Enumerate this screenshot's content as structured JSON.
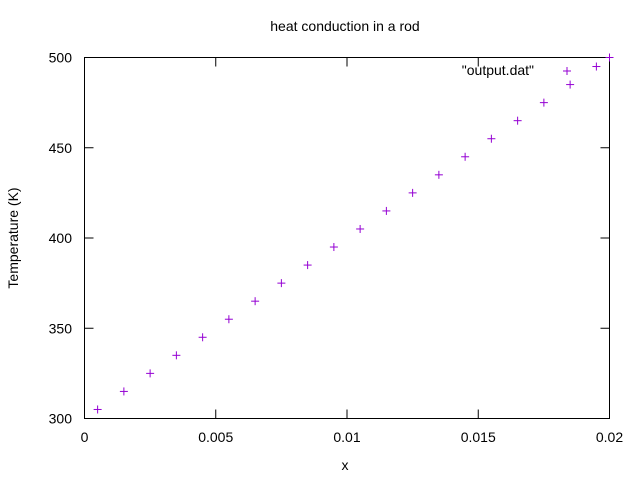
{
  "chart_data": {
    "type": "scatter",
    "title": "heat conduction in a rod",
    "xlabel": "x",
    "ylabel": "Temperature (K)",
    "xlim": [
      0,
      0.02
    ],
    "ylim": [
      300,
      500
    ],
    "xticks": [
      0,
      0.005,
      0.01,
      0.015,
      0.02
    ],
    "xtick_labels": [
      "0",
      "0.005",
      "0.01",
      "0.015",
      "0.02"
    ],
    "yticks": [
      300,
      350,
      400,
      450,
      500
    ],
    "ytick_labels": [
      "300",
      "350",
      "400",
      "450",
      "500"
    ],
    "grid": false,
    "marker": "+",
    "legend_position": "top-right",
    "series": [
      {
        "name": "\"output.dat\"",
        "color": "#9400d3",
        "points": [
          {
            "x": 0.0005,
            "y": 305
          },
          {
            "x": 0.0015,
            "y": 315
          },
          {
            "x": 0.0025,
            "y": 325
          },
          {
            "x": 0.0035,
            "y": 335
          },
          {
            "x": 0.0045,
            "y": 345
          },
          {
            "x": 0.0055,
            "y": 355
          },
          {
            "x": 0.0065,
            "y": 365
          },
          {
            "x": 0.0075,
            "y": 375
          },
          {
            "x": 0.0085,
            "y": 385
          },
          {
            "x": 0.0095,
            "y": 395
          },
          {
            "x": 0.0105,
            "y": 405
          },
          {
            "x": 0.0115,
            "y": 415
          },
          {
            "x": 0.0125,
            "y": 425
          },
          {
            "x": 0.0135,
            "y": 435
          },
          {
            "x": 0.0145,
            "y": 445
          },
          {
            "x": 0.0155,
            "y": 455
          },
          {
            "x": 0.0165,
            "y": 465
          },
          {
            "x": 0.0175,
            "y": 475
          },
          {
            "x": 0.0185,
            "y": 485
          },
          {
            "x": 0.0195,
            "y": 495
          },
          {
            "x": 0.02,
            "y": 500
          }
        ]
      }
    ]
  }
}
